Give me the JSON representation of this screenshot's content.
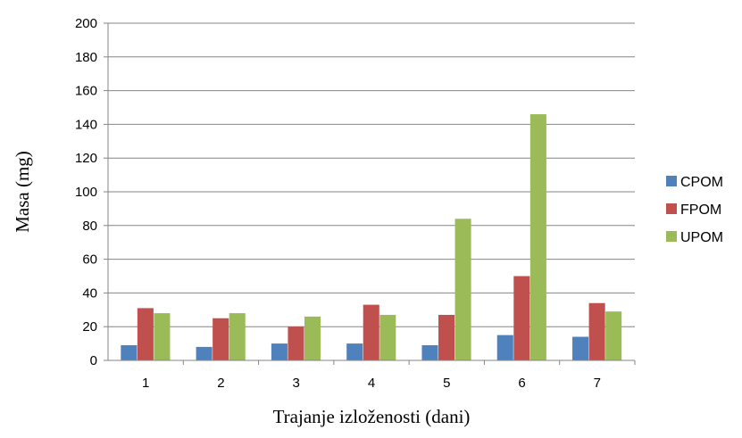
{
  "chart_data": {
    "type": "bar",
    "title": "",
    "xlabel": "Trajanje izloženosti (dani)",
    "ylabel": "Masa (mg)",
    "categories": [
      "1",
      "2",
      "3",
      "4",
      "5",
      "6",
      "7"
    ],
    "series": [
      {
        "name": "CPOM",
        "color": "#4F81BD",
        "values": [
          9,
          8,
          10,
          10,
          9,
          15,
          14
        ]
      },
      {
        "name": "FPOM",
        "color": "#C0504D",
        "values": [
          31,
          25,
          20,
          33,
          27,
          50,
          34
        ]
      },
      {
        "name": "UPOM",
        "color": "#9BBB59",
        "values": [
          28,
          28,
          26,
          27,
          84,
          146,
          29
        ]
      }
    ],
    "ylim": [
      0,
      200
    ],
    "yticks": [
      0,
      20,
      40,
      60,
      80,
      100,
      120,
      140,
      160,
      180,
      200
    ],
    "grid": true,
    "legend": "right"
  }
}
